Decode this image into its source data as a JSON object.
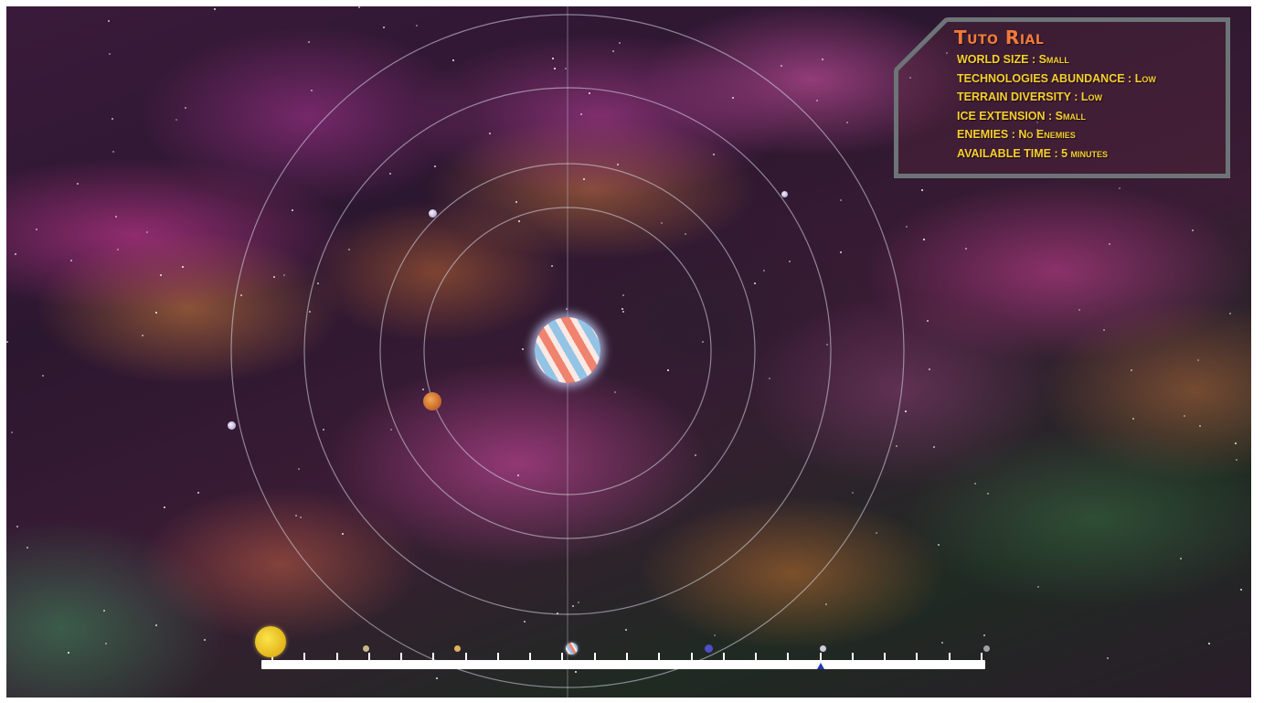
{
  "game_settings_panel": {
    "title": "Tuto Rial",
    "rows": [
      {
        "label": "WORLD SIZE",
        "value": "Small"
      },
      {
        "label": "TECHNOLOGIES ABUNDANCE",
        "value": "Low"
      },
      {
        "label": "TERRAIN DIVERSITY",
        "value": "Low"
      },
      {
        "label": "ICE EXTENSION",
        "value": "Small"
      },
      {
        "label": "ENEMIES",
        "value": "No Enemies"
      },
      {
        "label": "AVAILABLE TIME",
        "value": "5 minutes"
      }
    ],
    "separator": " : "
  },
  "colors": {
    "title": "#f07a3a",
    "text": "#f6d02d",
    "panel_border": "#6d7478",
    "timeline_marker": "#2438b8"
  },
  "icons": {
    "central_star": "striped-planet-icon",
    "orbiting_planet": "orange-planet-icon",
    "orbiting_moons": "small-moon-icon",
    "timeline_sun": "yellow-sun-icon",
    "timeline_marker": "triangle-marker-icon"
  }
}
